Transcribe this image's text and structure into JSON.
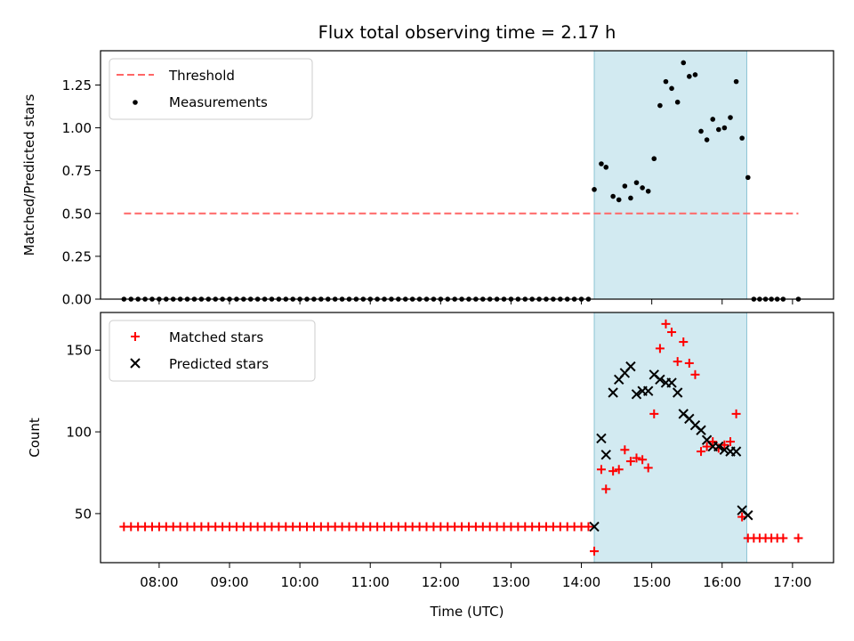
{
  "title": "Flux total observing time = 2.17 h",
  "chart_data": [
    {
      "type": "scatter",
      "ylabel": "Matched/Predicted stars",
      "xlim": [
        7.167,
        17.583
      ],
      "ylim": [
        0,
        1.45
      ],
      "yticks": [
        0,
        0.25,
        0.5,
        0.75,
        1.0,
        1.25
      ],
      "ytick_labels": [
        "0.00",
        "0.25",
        "0.50",
        "0.75",
        "1.00",
        "1.25"
      ],
      "grid": false,
      "legend": "top-left",
      "shaded_region": {
        "x": [
          14.183,
          16.35
        ],
        "color": "#add8e6"
      },
      "threshold": {
        "name": "Threshold",
        "y": 0.5,
        "x": [
          7.5,
          17.083
        ],
        "color": "#ff6666",
        "style": "dashed"
      },
      "series": [
        {
          "name": "Measurements",
          "color": "#000000",
          "marker": "dot",
          "x": [
            7.5,
            7.6,
            7.7,
            7.8,
            7.9,
            8.0,
            8.1,
            8.2,
            8.3,
            8.4,
            8.5,
            8.6,
            8.7,
            8.8,
            8.9,
            9.0,
            9.1,
            9.2,
            9.3,
            9.4,
            9.5,
            9.6,
            9.7,
            9.8,
            9.9,
            10.0,
            10.1,
            10.2,
            10.3,
            10.4,
            10.5,
            10.6,
            10.7,
            10.8,
            10.9,
            11.0,
            11.1,
            11.2,
            11.3,
            11.4,
            11.5,
            11.6,
            11.7,
            11.8,
            11.9,
            12.0,
            12.1,
            12.2,
            12.3,
            12.4,
            12.5,
            12.6,
            12.7,
            12.8,
            12.9,
            13.0,
            13.1,
            13.2,
            13.3,
            13.4,
            13.5,
            13.6,
            13.7,
            13.8,
            13.9,
            14.0,
            14.1,
            14.183,
            14.283,
            14.35,
            14.45,
            14.533,
            14.617,
            14.7,
            14.783,
            14.867,
            14.95,
            15.033,
            15.117,
            15.2,
            15.283,
            15.367,
            15.45,
            15.533,
            15.617,
            15.7,
            15.783,
            15.867,
            15.95,
            16.033,
            16.117,
            16.2,
            16.283,
            16.367,
            16.45,
            16.533,
            16.617,
            16.7,
            16.783,
            16.867,
            17.083
          ],
          "y": [
            0,
            0,
            0,
            0,
            0,
            0,
            0,
            0,
            0,
            0,
            0,
            0,
            0,
            0,
            0,
            0,
            0,
            0,
            0,
            0,
            0,
            0,
            0,
            0,
            0,
            0,
            0,
            0,
            0,
            0,
            0,
            0,
            0,
            0,
            0,
            0,
            0,
            0,
            0,
            0,
            0,
            0,
            0,
            0,
            0,
            0,
            0,
            0,
            0,
            0,
            0,
            0,
            0,
            0,
            0,
            0,
            0,
            0,
            0,
            0,
            0,
            0,
            0,
            0,
            0,
            0,
            0,
            0.64,
            0.79,
            0.77,
            0.6,
            0.58,
            0.66,
            0.59,
            0.68,
            0.65,
            0.63,
            0.82,
            1.13,
            1.27,
            1.23,
            1.15,
            1.38,
            1.3,
            1.31,
            0.98,
            0.93,
            1.05,
            0.99,
            1.0,
            1.06,
            1.27,
            0.94,
            0.71,
            0,
            0,
            0,
            0,
            0,
            0,
            0
          ]
        }
      ]
    },
    {
      "type": "scatter",
      "xlabel": "Time (UTC)",
      "ylabel": "Count",
      "xlim": [
        7.167,
        17.583
      ],
      "ylim": [
        20,
        173
      ],
      "yticks": [
        50,
        100,
        150
      ],
      "ytick_labels": [
        "50",
        "100",
        "150"
      ],
      "xticks": [
        8,
        9,
        10,
        11,
        12,
        13,
        14,
        15,
        16,
        17
      ],
      "xtick_labels": [
        "08:00",
        "09:00",
        "10:00",
        "11:00",
        "12:00",
        "13:00",
        "14:00",
        "15:00",
        "16:00",
        "17:00"
      ],
      "grid": false,
      "legend": "top-left",
      "shaded_region": {
        "x": [
          14.183,
          16.35
        ],
        "color": "#add8e6"
      },
      "series": [
        {
          "name": "Matched stars",
          "color": "#ff0000",
          "marker": "plus",
          "x": [
            7.5,
            7.6,
            7.7,
            7.8,
            7.9,
            8.0,
            8.1,
            8.2,
            8.3,
            8.4,
            8.5,
            8.6,
            8.7,
            8.8,
            8.9,
            9.0,
            9.1,
            9.2,
            9.3,
            9.4,
            9.5,
            9.6,
            9.7,
            9.8,
            9.9,
            10.0,
            10.1,
            10.2,
            10.3,
            10.4,
            10.5,
            10.6,
            10.7,
            10.8,
            10.9,
            11.0,
            11.1,
            11.2,
            11.3,
            11.4,
            11.5,
            11.6,
            11.7,
            11.8,
            11.9,
            12.0,
            12.1,
            12.2,
            12.3,
            12.4,
            12.5,
            12.6,
            12.7,
            12.8,
            12.9,
            13.0,
            13.1,
            13.2,
            13.3,
            13.4,
            13.5,
            13.6,
            13.7,
            13.8,
            13.9,
            14.0,
            14.1,
            14.183,
            14.283,
            14.35,
            14.45,
            14.533,
            14.617,
            14.7,
            14.783,
            14.867,
            14.95,
            15.033,
            15.117,
            15.2,
            15.283,
            15.367,
            15.45,
            15.533,
            15.617,
            15.7,
            15.783,
            15.867,
            15.95,
            16.033,
            16.117,
            16.2,
            16.283,
            16.367,
            16.45,
            16.533,
            16.617,
            16.7,
            16.783,
            16.867,
            17.083
          ],
          "y": [
            42,
            42,
            42,
            42,
            42,
            42,
            42,
            42,
            42,
            42,
            42,
            42,
            42,
            42,
            42,
            42,
            42,
            42,
            42,
            42,
            42,
            42,
            42,
            42,
            42,
            42,
            42,
            42,
            42,
            42,
            42,
            42,
            42,
            42,
            42,
            42,
            42,
            42,
            42,
            42,
            42,
            42,
            42,
            42,
            42,
            42,
            42,
            42,
            42,
            42,
            42,
            42,
            42,
            42,
            42,
            42,
            42,
            42,
            42,
            42,
            42,
            42,
            42,
            42,
            42,
            42,
            42,
            27,
            77,
            65,
            76,
            77,
            89,
            82,
            84,
            83,
            78,
            111,
            151,
            166,
            161,
            143,
            155,
            142,
            135,
            88,
            91,
            94,
            90,
            92,
            94,
            111,
            48,
            35,
            35,
            35,
            35,
            35,
            35,
            35,
            35
          ]
        },
        {
          "name": "Predicted stars",
          "color": "#000000",
          "marker": "x",
          "x": [
            14.183,
            14.283,
            14.35,
            14.45,
            14.533,
            14.617,
            14.7,
            14.783,
            14.867,
            14.95,
            15.033,
            15.117,
            15.2,
            15.283,
            15.367,
            15.45,
            15.533,
            15.617,
            15.7,
            15.783,
            15.867,
            15.95,
            16.033,
            16.117,
            16.2,
            16.283,
            16.367
          ],
          "y": [
            42,
            96,
            86,
            124,
            132,
            136,
            140,
            123,
            125,
            125,
            135,
            132,
            130,
            130,
            124,
            111,
            108,
            104,
            101,
            95,
            91,
            91,
            89,
            88,
            88,
            52,
            49
          ]
        }
      ]
    }
  ]
}
